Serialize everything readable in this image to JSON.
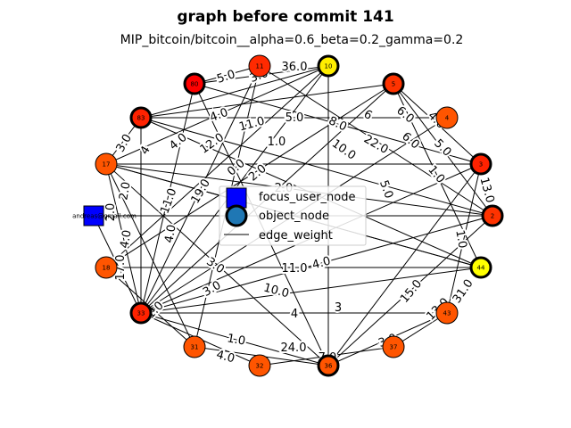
{
  "title": "graph before commit 141",
  "subtitle": "MIP_bitcoin/bitcoin__alpha=0.6_beta=0.2_gamma=0.2",
  "legend": {
    "items": [
      {
        "label": "focus_user_node",
        "kind": "square",
        "color": "#0000ff"
      },
      {
        "label": "object_node",
        "kind": "circle",
        "color": "#1f77b4"
      },
      {
        "label": "edge_weight",
        "kind": "line",
        "color": "#000000"
      }
    ]
  },
  "focus_node": {
    "label": "andreas@gmail.com",
    "color": "#0000ff"
  },
  "nodes": [
    {
      "label": "11",
      "color": "#ff2a00",
      "bold": false
    },
    {
      "label": "10",
      "color": "#ffee00",
      "bold": true
    },
    {
      "label": "5",
      "color": "#ff3300",
      "bold": true
    },
    {
      "label": "80",
      "color": "#ff0000",
      "bold": true
    },
    {
      "label": "4",
      "color": "#ff5500",
      "bold": false
    },
    {
      "label": "83",
      "color": "#ff2200",
      "bold": true
    },
    {
      "label": "3",
      "color": "#ff2200",
      "bold": true
    },
    {
      "label": "17",
      "color": "#ff5500",
      "bold": false
    },
    {
      "label": "2",
      "color": "#ff3300",
      "bold": true
    },
    {
      "label": "44",
      "color": "#ffff00",
      "bold": true
    },
    {
      "label": "18",
      "color": "#ff5500",
      "bold": false
    },
    {
      "label": "43",
      "color": "#ff5500",
      "bold": false
    },
    {
      "label": "33",
      "color": "#ff2200",
      "bold": true
    },
    {
      "label": "37",
      "color": "#ff5500",
      "bold": false
    },
    {
      "label": "31",
      "color": "#ff5500",
      "bold": false
    },
    {
      "label": "36",
      "color": "#ff5500",
      "bold": true
    },
    {
      "label": "32",
      "color": "#ff5500",
      "bold": false
    }
  ],
  "edge_labels": [
    "36.0",
    "5.0",
    "3.0",
    "4.0",
    "11.0",
    "5.0",
    "8.0",
    "6",
    "6.0",
    "4.0",
    "5.0",
    "3.0",
    "4",
    "4.0",
    "12.0",
    "1.0",
    "22.0",
    "6.0",
    "1.0",
    "10.0",
    "0.0",
    "2.0",
    "13.0",
    "2.0",
    "11.0",
    "19.0",
    "2.0",
    "5.0",
    "2.0",
    "4.0",
    "4.0",
    "1.0",
    "3.0",
    "11.0",
    "4.0",
    "3.0",
    "17.0",
    "15.0",
    "31.0",
    "10.0",
    "3",
    "4",
    "13.0",
    "1.0",
    "24.0",
    "3.0",
    "4.0",
    "7.0",
    "1.0"
  ]
}
